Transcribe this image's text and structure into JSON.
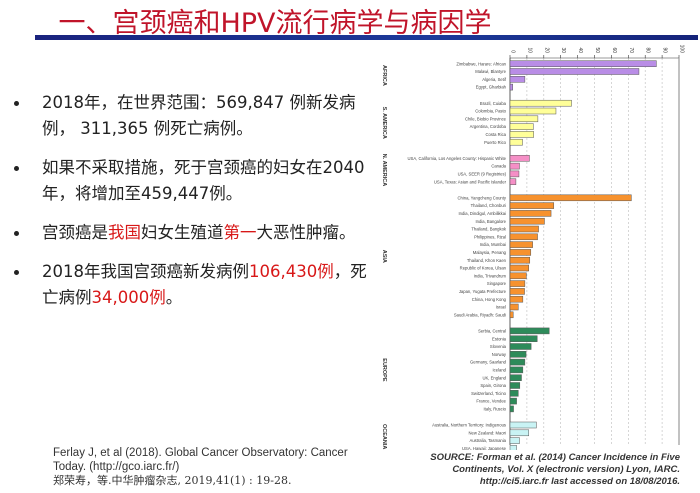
{
  "title": "一、宫颈癌和HPV流行病学与病因学",
  "bullets": [
    {
      "parts": [
        "2018年，在世界范围：569,847 例新发病例， 311,365 例死亡病例。"
      ]
    },
    {
      "parts": [
        "如果不采取措施，死于宫颈癌的妇女在2040年，将增加至459,447例。"
      ]
    },
    {
      "parts": [
        "宫颈癌是",
        "我国",
        "妇女生殖道",
        "第一",
        "大恶性肿瘤。"
      ]
    },
    {
      "parts": [
        "2018年我国宫颈癌新发病例",
        "106,430例",
        "，死亡病例",
        "34,000例",
        "。"
      ]
    }
  ],
  "references": {
    "ref1": "Ferlay J, et al (2018). Global Cancer Observatory: Cancer Today. (http://gco.iarc.fr/)",
    "ref2": "郑荣寿，等.中华肿瘤杂志, 2019,41(1) : 19-28."
  },
  "source": {
    "label": "SOURCE:",
    "text": "Forman et al. (2014) Cancer Incidence in Five Continents, Vol. X (electronic version) Lyon, IARC. http://ci5.iarc.fr last accessed on 18/08/2016."
  },
  "colors": {
    "title": "#c0142a",
    "highlight": "#d81818"
  },
  "chart_data": {
    "type": "bar",
    "orientation": "horizontal",
    "xlim": [
      0,
      100
    ],
    "ticks": [
      0,
      10,
      20,
      30,
      40,
      50,
      60,
      70,
      80,
      90,
      100
    ],
    "grid": true,
    "groups": [
      {
        "name": "AFRICA",
        "color": "#b98de6",
        "categories": [
          "Zimbabwe, Harare: African",
          "Malawi, Blantyre",
          "Algeria, Setif",
          "Egypt, Gharbiah"
        ],
        "values": [
          86.6,
          76.3,
          8.8,
          1.6
        ]
      },
      {
        "name": "S. AMERICA",
        "color": "#ffff99",
        "categories": [
          "Brazil, Cuiaba",
          "Colombia, Pasto",
          "Chile, Biobio Province",
          "Argentina, Cordoba",
          "Costa Rica",
          "Puerto Rico"
        ],
        "values": [
          36.4,
          27.2,
          16.5,
          13.8,
          14.0,
          7.4
        ]
      },
      {
        "name": "N. AMERICA",
        "color": "#f58fc6",
        "categories": [
          "USA, California, Los Angeles County: Hispanic White",
          "Canada",
          "USA, SEER (9 Registries)",
          "USA, Texas: Asian and Pacific Islander"
        ],
        "values": [
          11.5,
          5.6,
          5.3,
          3.5
        ]
      },
      {
        "name": "ASIA",
        "color": "#f7922e",
        "categories": [
          "China, Yangcheng County",
          "Thailand, Chonburi",
          "India, Dindigul, Ambilikkai",
          "India, Bangalore",
          "Thailand, Bangkok",
          "Philippines, Rizal",
          "India, Mumbai",
          "Malaysia, Penang",
          "Thailand, Khon Kaen",
          "Republic of Korea, Ulsan",
          "India, Trivandrum",
          "Singapore",
          "Japan, Yugata Prefecture",
          "China, Hong Kong",
          "Israel",
          "Saudi Arabia, Riyadh: Saudi"
        ],
        "values": [
          71.8,
          25.9,
          24.3,
          20.4,
          16.9,
          16.3,
          13.4,
          12.3,
          11.7,
          11.1,
          9.7,
          8.8,
          8.6,
          7.6,
          4.9,
          1.9
        ]
      },
      {
        "name": "EUROPE",
        "color": "#2e8b5a",
        "categories": [
          "Serbia, Central",
          "Estonia",
          "Slovenia",
          "Norway",
          "Germany, Saarland",
          "Iceland",
          "UK, England",
          "Spain, Girona",
          "Switzerland, Ticino",
          "France, Vendee",
          "Italy, Ruscio"
        ],
        "values": [
          23.2,
          16.1,
          12.5,
          9.5,
          8.8,
          7.6,
          6.8,
          5.8,
          4.9,
          3.9,
          2.1
        ]
      },
      {
        "name": "OCEANIA",
        "color": "#c9f3f4",
        "categories": [
          "Australia, Northern Territory: Indigenous",
          "New Zealand: Maori",
          "Australia, Tasmania",
          "USA, Hawaii: Japanese"
        ],
        "values": [
          15.6,
          11.1,
          5.6,
          3.9
        ]
      }
    ]
  }
}
